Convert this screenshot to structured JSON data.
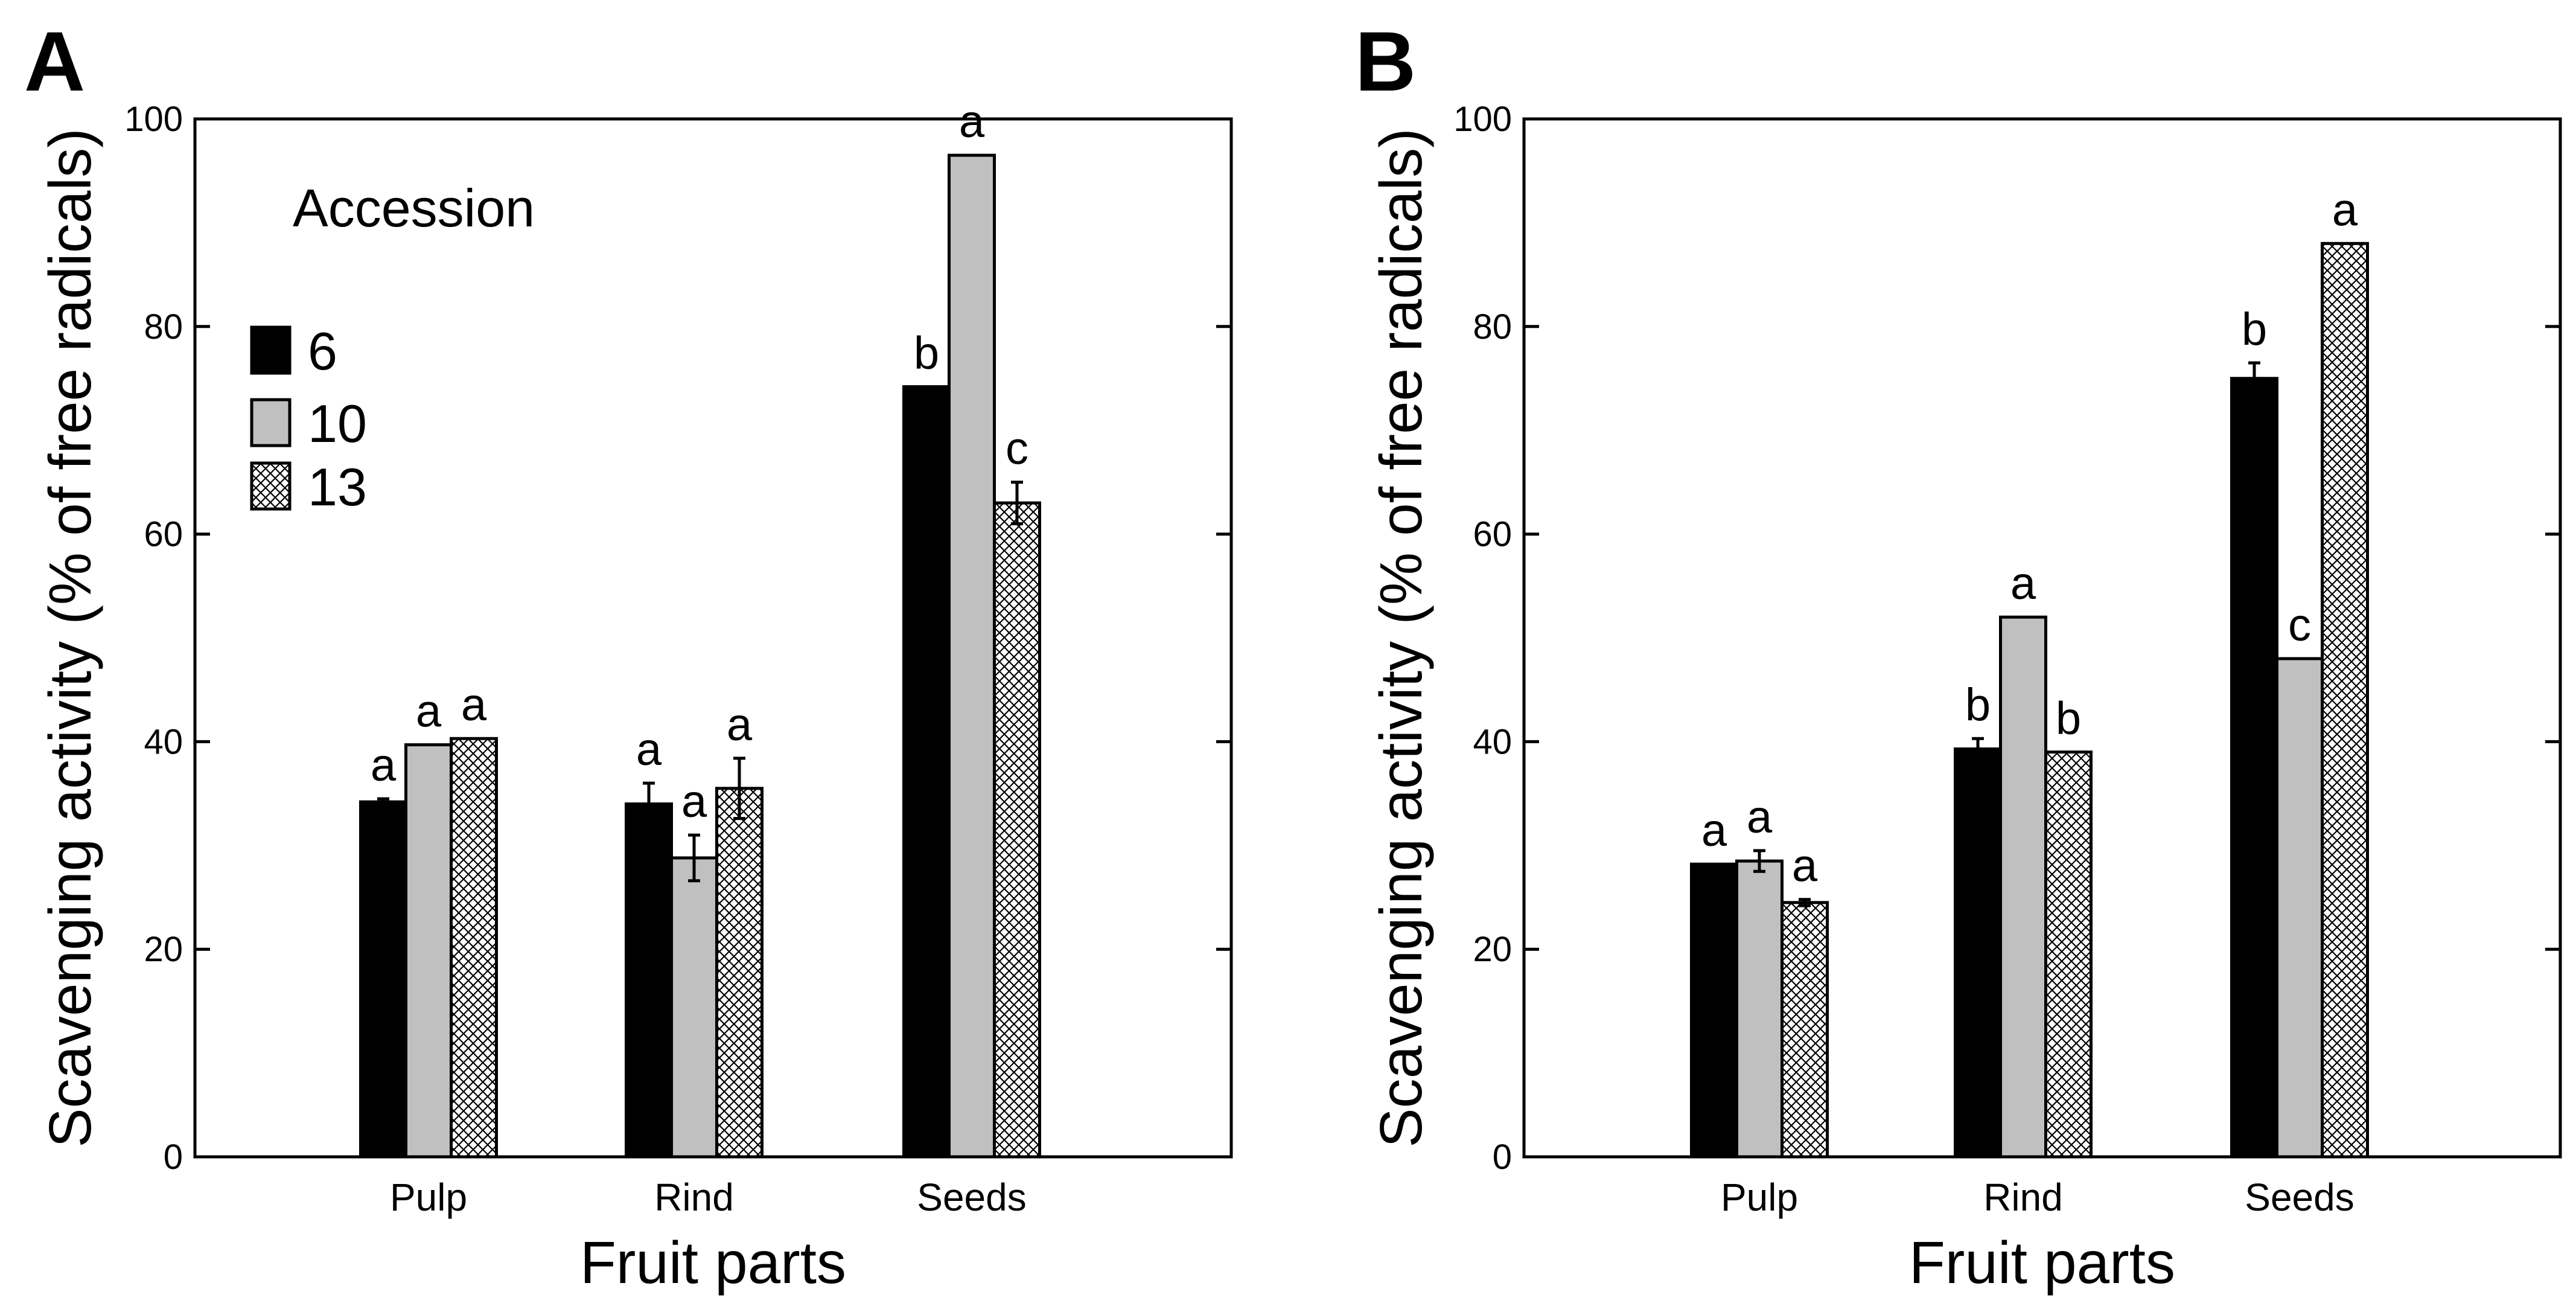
{
  "colors": {
    "series_6": "#000000",
    "series_10": "#c0c0c0",
    "series_13_bg": "#ffffff",
    "series_13_hatch": "#000000",
    "axis": "#000000"
  },
  "chart_data": [
    {
      "panel": "A",
      "type": "bar",
      "xlabel": "Fruit parts",
      "ylabel": "Scavenging activity (% of free radicals)",
      "ylim": [
        0,
        100
      ],
      "yticks": [
        "0",
        "20",
        "40",
        "60",
        "80",
        "100"
      ],
      "categories": [
        "Pulp",
        "Rind",
        "Seeds"
      ],
      "legend": {
        "title": "Accession",
        "placement": "upper-left"
      },
      "series": [
        {
          "name": "6",
          "values": [
            34.2,
            34.0,
            74.2
          ],
          "errors": [
            0.3,
            2.0,
            0.0
          ],
          "letters": [
            "a",
            "a",
            "b"
          ]
        },
        {
          "name": "10",
          "values": [
            39.7,
            28.8,
            96.5
          ],
          "errors": [
            0.0,
            2.2,
            0.0
          ],
          "letters": [
            "a",
            "a",
            "a"
          ]
        },
        {
          "name": "13",
          "values": [
            40.3,
            35.5,
            63.0
          ],
          "errors": [
            0.0,
            2.9,
            2.0
          ],
          "letters": [
            "a",
            "a",
            "c"
          ]
        }
      ]
    },
    {
      "panel": "B",
      "type": "bar",
      "xlabel": "Fruit parts",
      "ylabel": "Scavenging activity (% of free radicals)",
      "ylim": [
        0,
        100
      ],
      "yticks": [
        "0",
        "20",
        "40",
        "60",
        "80",
        "100"
      ],
      "categories": [
        "Pulp",
        "Rind",
        "Seeds"
      ],
      "series": [
        {
          "name": "6",
          "values": [
            28.2,
            39.3,
            75.0
          ],
          "errors": [
            0.0,
            1.0,
            1.5
          ],
          "letters": [
            "a",
            "b",
            "b"
          ]
        },
        {
          "name": "10",
          "values": [
            28.5,
            52.0,
            48.0
          ],
          "errors": [
            1.0,
            0.0,
            0.0
          ],
          "letters": [
            "a",
            "a",
            "c"
          ]
        },
        {
          "name": "13",
          "values": [
            24.5,
            39.0,
            88.0
          ],
          "errors": [
            0.3,
            0.0,
            0.0
          ],
          "letters": [
            "a",
            "b",
            "a"
          ]
        }
      ]
    }
  ]
}
